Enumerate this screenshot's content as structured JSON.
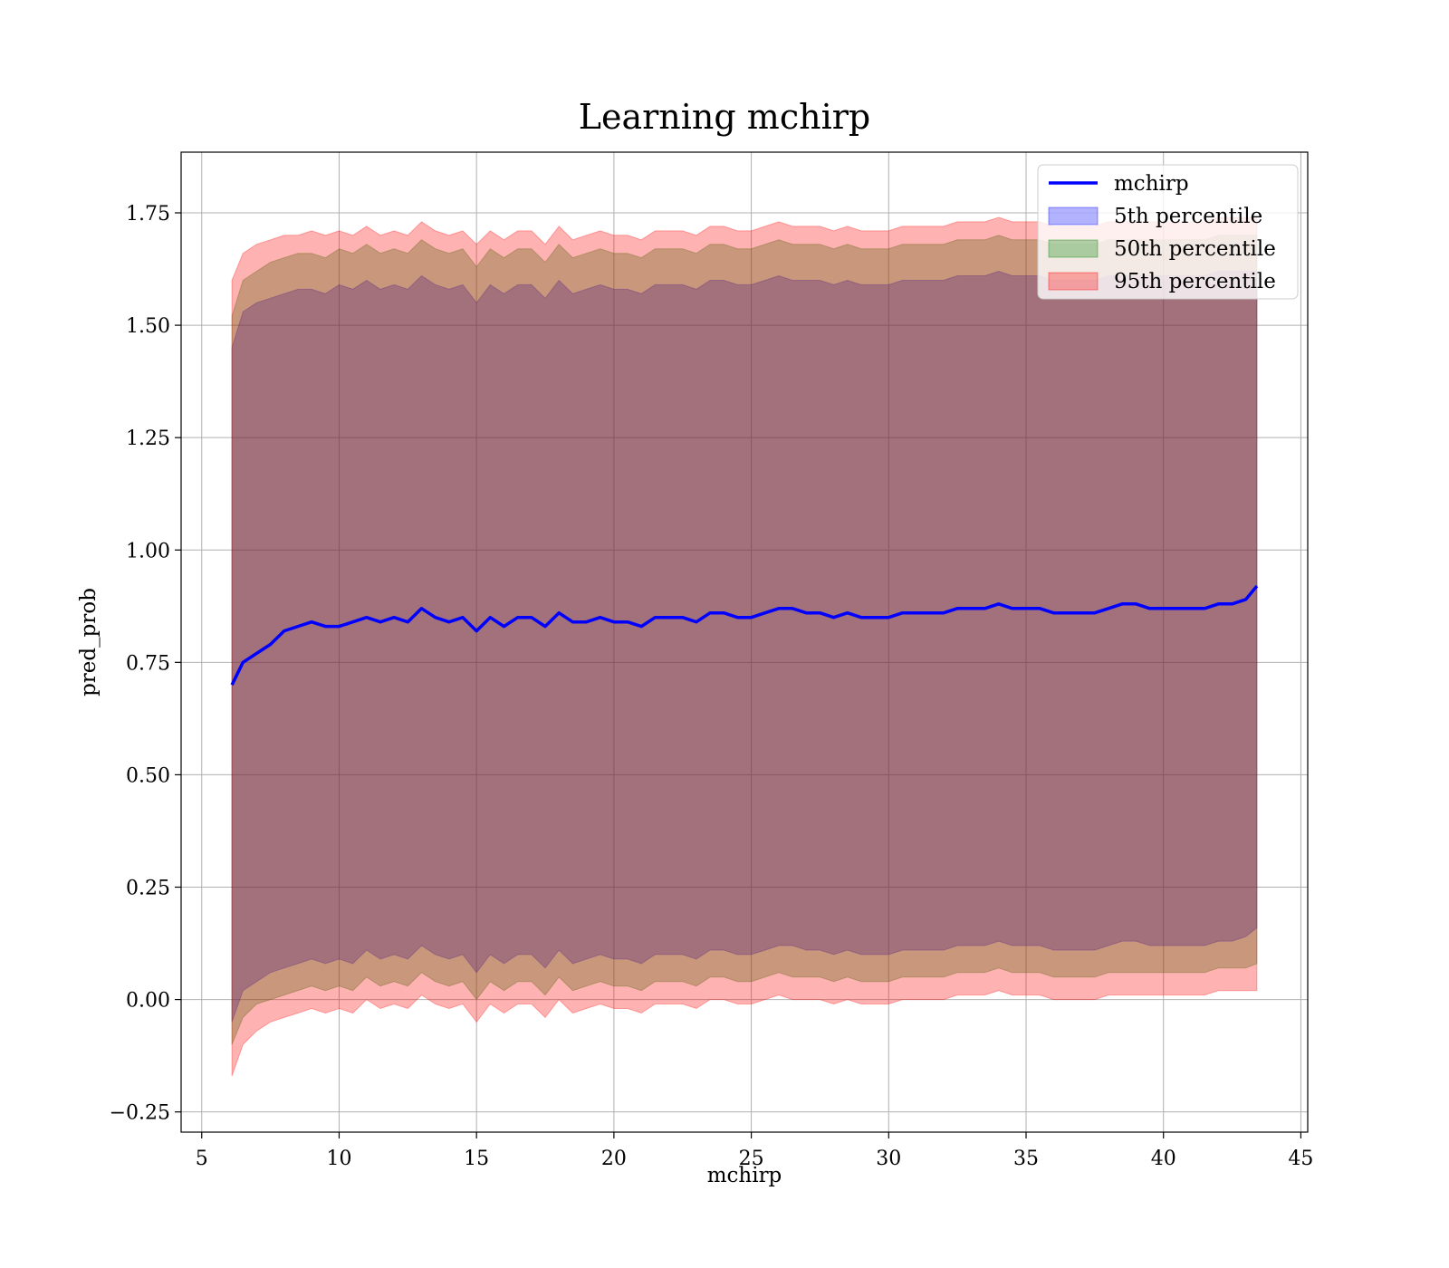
{
  "chart_data": {
    "type": "line",
    "title": "Learning mchirp",
    "xlabel": "mchirp",
    "ylabel": "pred_prob",
    "xlim": [
      4.25,
      45.25
    ],
    "ylim": [
      -0.295,
      1.885
    ],
    "xticks": [
      5,
      10,
      15,
      20,
      25,
      30,
      35,
      40,
      45
    ],
    "yticks": [
      -0.25,
      0.0,
      0.25,
      0.5,
      0.75,
      1.0,
      1.25,
      1.5,
      1.75
    ],
    "ytick_labels": [
      "−0.25",
      "0.00",
      "0.25",
      "0.50",
      "0.75",
      "1.00",
      "1.25",
      "1.50",
      "1.75"
    ],
    "grid": true,
    "legend_position": "top-right",
    "x": [
      6.1,
      6.5,
      7,
      7.5,
      8,
      8.5,
      9,
      9.5,
      10,
      10.5,
      11,
      11.5,
      12,
      12.5,
      13,
      13.5,
      14,
      14.5,
      15,
      15.5,
      16,
      16.5,
      17,
      17.5,
      18,
      18.5,
      19,
      19.5,
      20,
      20.5,
      21,
      21.5,
      22,
      22.5,
      23,
      23.5,
      24,
      24.5,
      25,
      25.5,
      26,
      26.5,
      27,
      27.5,
      28,
      28.5,
      29,
      29.5,
      30,
      30.5,
      31,
      31.5,
      32,
      32.5,
      33,
      33.5,
      34,
      34.5,
      35,
      35.5,
      36,
      36.5,
      37,
      37.5,
      38,
      38.5,
      39,
      39.5,
      40,
      40.5,
      41,
      41.5,
      42,
      42.5,
      43,
      43.4
    ],
    "series": [
      {
        "name": "mchirp",
        "kind": "line",
        "color": "#0000ff",
        "y": [
          0.7,
          0.75,
          0.77,
          0.79,
          0.82,
          0.83,
          0.84,
          0.83,
          0.83,
          0.84,
          0.85,
          0.84,
          0.85,
          0.84,
          0.87,
          0.85,
          0.84,
          0.85,
          0.82,
          0.85,
          0.83,
          0.85,
          0.85,
          0.83,
          0.86,
          0.84,
          0.84,
          0.85,
          0.84,
          0.84,
          0.83,
          0.85,
          0.85,
          0.85,
          0.84,
          0.86,
          0.86,
          0.85,
          0.85,
          0.86,
          0.87,
          0.87,
          0.86,
          0.86,
          0.85,
          0.86,
          0.85,
          0.85,
          0.85,
          0.86,
          0.86,
          0.86,
          0.86,
          0.87,
          0.87,
          0.87,
          0.88,
          0.87,
          0.87,
          0.87,
          0.86,
          0.86,
          0.86,
          0.86,
          0.87,
          0.88,
          0.88,
          0.87,
          0.87,
          0.87,
          0.87,
          0.87,
          0.88,
          0.88,
          0.89,
          0.92
        ]
      },
      {
        "name": "5th percentile",
        "kind": "band",
        "color": "#0000ff",
        "upper": [
          1.45,
          1.53,
          1.55,
          1.56,
          1.57,
          1.58,
          1.58,
          1.57,
          1.59,
          1.58,
          1.6,
          1.58,
          1.59,
          1.58,
          1.61,
          1.59,
          1.58,
          1.59,
          1.55,
          1.59,
          1.57,
          1.59,
          1.59,
          1.56,
          1.6,
          1.57,
          1.58,
          1.59,
          1.58,
          1.58,
          1.57,
          1.59,
          1.59,
          1.59,
          1.58,
          1.6,
          1.6,
          1.59,
          1.59,
          1.6,
          1.61,
          1.6,
          1.6,
          1.6,
          1.59,
          1.6,
          1.59,
          1.59,
          1.59,
          1.6,
          1.6,
          1.6,
          1.6,
          1.61,
          1.61,
          1.61,
          1.62,
          1.61,
          1.61,
          1.61,
          1.6,
          1.6,
          1.6,
          1.6,
          1.61,
          1.61,
          1.61,
          1.61,
          1.61,
          1.61,
          1.61,
          1.61,
          1.62,
          1.62,
          1.62,
          1.62
        ],
        "lower": [
          -0.05,
          0.02,
          0.04,
          0.06,
          0.07,
          0.08,
          0.09,
          0.08,
          0.09,
          0.08,
          0.11,
          0.09,
          0.1,
          0.09,
          0.12,
          0.1,
          0.09,
          0.1,
          0.06,
          0.1,
          0.08,
          0.1,
          0.1,
          0.07,
          0.11,
          0.08,
          0.09,
          0.1,
          0.09,
          0.09,
          0.08,
          0.1,
          0.1,
          0.1,
          0.09,
          0.11,
          0.11,
          0.1,
          0.1,
          0.11,
          0.12,
          0.12,
          0.11,
          0.11,
          0.1,
          0.11,
          0.1,
          0.1,
          0.1,
          0.11,
          0.11,
          0.11,
          0.11,
          0.12,
          0.12,
          0.12,
          0.13,
          0.12,
          0.12,
          0.12,
          0.11,
          0.11,
          0.11,
          0.11,
          0.12,
          0.13,
          0.13,
          0.12,
          0.12,
          0.12,
          0.12,
          0.12,
          0.13,
          0.13,
          0.14,
          0.16
        ]
      },
      {
        "name": "50th percentile",
        "kind": "band",
        "color": "#008000",
        "upper": [
          1.52,
          1.6,
          1.62,
          1.64,
          1.65,
          1.66,
          1.66,
          1.65,
          1.67,
          1.66,
          1.68,
          1.66,
          1.67,
          1.66,
          1.69,
          1.67,
          1.66,
          1.67,
          1.63,
          1.67,
          1.65,
          1.67,
          1.67,
          1.64,
          1.68,
          1.65,
          1.66,
          1.67,
          1.66,
          1.66,
          1.65,
          1.67,
          1.67,
          1.67,
          1.66,
          1.68,
          1.68,
          1.67,
          1.67,
          1.68,
          1.69,
          1.68,
          1.68,
          1.68,
          1.67,
          1.68,
          1.67,
          1.67,
          1.67,
          1.68,
          1.68,
          1.68,
          1.68,
          1.69,
          1.69,
          1.69,
          1.7,
          1.69,
          1.69,
          1.69,
          1.68,
          1.68,
          1.68,
          1.68,
          1.69,
          1.69,
          1.69,
          1.69,
          1.69,
          1.69,
          1.69,
          1.69,
          1.7,
          1.7,
          1.7,
          1.7
        ],
        "lower": [
          -0.1,
          -0.04,
          -0.01,
          0.0,
          0.01,
          0.02,
          0.03,
          0.02,
          0.03,
          0.02,
          0.05,
          0.03,
          0.04,
          0.03,
          0.06,
          0.04,
          0.03,
          0.04,
          0.0,
          0.04,
          0.02,
          0.04,
          0.04,
          0.01,
          0.05,
          0.02,
          0.03,
          0.04,
          0.03,
          0.03,
          0.02,
          0.04,
          0.04,
          0.04,
          0.03,
          0.05,
          0.05,
          0.04,
          0.04,
          0.05,
          0.06,
          0.05,
          0.05,
          0.05,
          0.04,
          0.05,
          0.04,
          0.04,
          0.04,
          0.05,
          0.05,
          0.05,
          0.05,
          0.06,
          0.06,
          0.06,
          0.07,
          0.06,
          0.06,
          0.06,
          0.05,
          0.05,
          0.05,
          0.05,
          0.06,
          0.06,
          0.06,
          0.06,
          0.06,
          0.06,
          0.06,
          0.06,
          0.07,
          0.07,
          0.07,
          0.08
        ]
      },
      {
        "name": "95th percentile",
        "kind": "band",
        "color": "#ff0000",
        "upper": [
          1.6,
          1.66,
          1.68,
          1.69,
          1.7,
          1.7,
          1.71,
          1.7,
          1.71,
          1.7,
          1.72,
          1.7,
          1.71,
          1.7,
          1.73,
          1.71,
          1.7,
          1.71,
          1.68,
          1.71,
          1.69,
          1.71,
          1.71,
          1.68,
          1.72,
          1.69,
          1.7,
          1.71,
          1.7,
          1.7,
          1.69,
          1.71,
          1.71,
          1.71,
          1.7,
          1.72,
          1.72,
          1.71,
          1.71,
          1.72,
          1.73,
          1.72,
          1.72,
          1.72,
          1.71,
          1.72,
          1.71,
          1.71,
          1.71,
          1.72,
          1.72,
          1.72,
          1.72,
          1.73,
          1.73,
          1.73,
          1.74,
          1.73,
          1.73,
          1.73,
          1.72,
          1.72,
          1.72,
          1.72,
          1.73,
          1.73,
          1.73,
          1.73,
          1.73,
          1.73,
          1.73,
          1.73,
          1.74,
          1.74,
          1.74,
          1.74
        ],
        "lower": [
          -0.17,
          -0.1,
          -0.07,
          -0.05,
          -0.04,
          -0.03,
          -0.02,
          -0.03,
          -0.02,
          -0.03,
          0.0,
          -0.02,
          -0.01,
          -0.02,
          0.01,
          -0.01,
          -0.02,
          -0.01,
          -0.05,
          -0.01,
          -0.03,
          -0.01,
          -0.01,
          -0.04,
          0.0,
          -0.03,
          -0.02,
          -0.01,
          -0.02,
          -0.02,
          -0.03,
          -0.01,
          -0.01,
          -0.01,
          -0.02,
          0.0,
          0.0,
          -0.01,
          -0.01,
          0.0,
          0.01,
          0.0,
          0.0,
          0.0,
          -0.01,
          0.0,
          -0.01,
          -0.01,
          -0.01,
          0.0,
          0.0,
          0.0,
          0.0,
          0.01,
          0.01,
          0.01,
          0.02,
          0.01,
          0.01,
          0.01,
          0.0,
          0.0,
          0.0,
          0.0,
          0.01,
          0.01,
          0.01,
          0.01,
          0.01,
          0.01,
          0.01,
          0.01,
          0.02,
          0.02,
          0.02,
          0.02
        ]
      }
    ]
  }
}
